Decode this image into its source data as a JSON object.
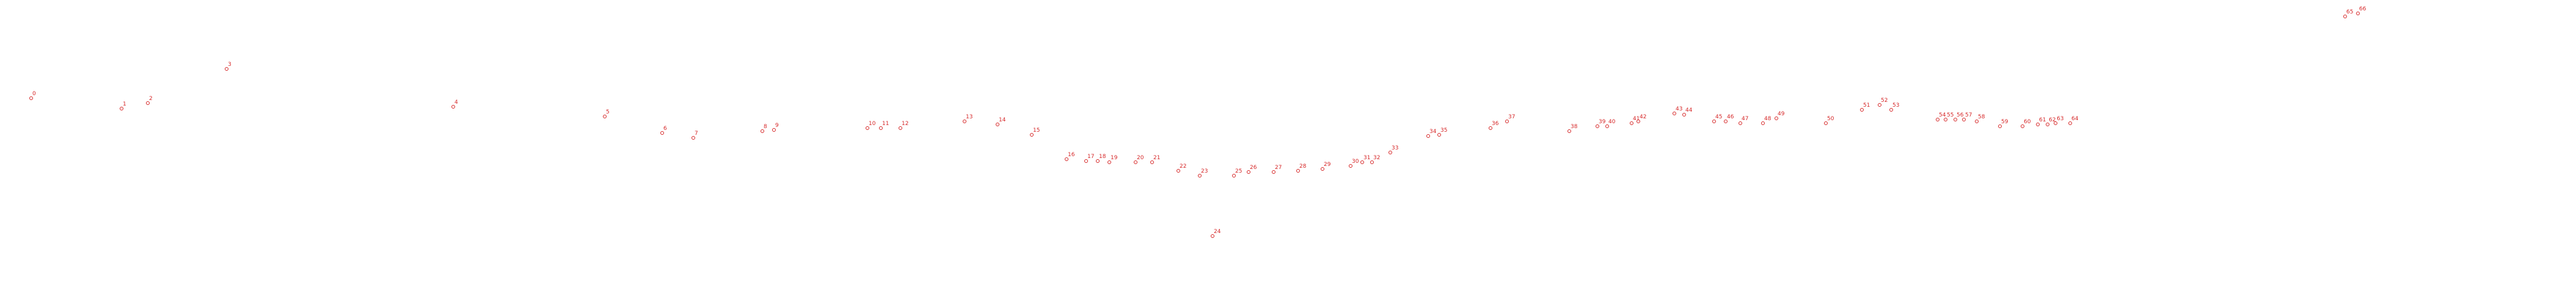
{
  "chart_data": {
    "type": "scatter",
    "color": "#d62728",
    "x": [
      51,
      199,
      242,
      371,
      742,
      990,
      1084,
      1135,
      1248,
      1267,
      1420,
      1442,
      1474,
      1579,
      1633,
      1689,
      1746,
      1778,
      1797,
      1816,
      1859,
      1886,
      1929,
      1964,
      1985,
      2020,
      2044,
      2085,
      2125,
      2165,
      2211,
      2230,
      2246,
      2276,
      2338,
      2356,
      2440,
      2467,
      2569,
      2615,
      2631,
      2671,
      2682,
      2741,
      2757,
      2806,
      2825,
      2849,
      2886,
      2908,
      2989,
      3048,
      3077,
      3096,
      3172,
      3185,
      3201,
      3215,
      3236,
      3274,
      3311,
      3336,
      3352,
      3365,
      3389,
      3839,
      3860
    ],
    "values": [
      161,
      178,
      169,
      113,
      175,
      191,
      218,
      226,
      215,
      213,
      210,
      210,
      210,
      199,
      204,
      221,
      261,
      264,
      264,
      266,
      266,
      266,
      280,
      288,
      387,
      288,
      282,
      282,
      280,
      277,
      272,
      266,
      266,
      250,
      223,
      221,
      210,
      199,
      215,
      207,
      207,
      202,
      199,
      186,
      188,
      199,
      199,
      202,
      202,
      194,
      202,
      180,
      172,
      180,
      196,
      196,
      196,
      196,
      199,
      207,
      207,
      204,
      204,
      202,
      202,
      27,
      22
    ],
    "labels": [
      "0",
      "1",
      "2",
      "3",
      "4",
      "5",
      "6",
      "7",
      "8",
      "9",
      "10",
      "11",
      "12",
      "13",
      "14",
      "15",
      "16",
      "17",
      "18",
      "19",
      "20",
      "21",
      "22",
      "23",
      "24",
      "25",
      "26",
      "27",
      "28",
      "29",
      "30",
      "31",
      "32",
      "33",
      "34",
      "35",
      "36",
      "37",
      "38",
      "39",
      "40",
      "41",
      "42",
      "43",
      "44",
      "45",
      "46",
      "47",
      "48",
      "49",
      "50",
      "51",
      "52",
      "53",
      "54",
      "55",
      "56",
      "57",
      "58",
      "59",
      "60",
      "61",
      "62",
      "63",
      "64",
      "65",
      "66"
    ],
    "xlim": [
      0,
      4217
    ],
    "ylim": [
      500,
      0
    ]
  }
}
